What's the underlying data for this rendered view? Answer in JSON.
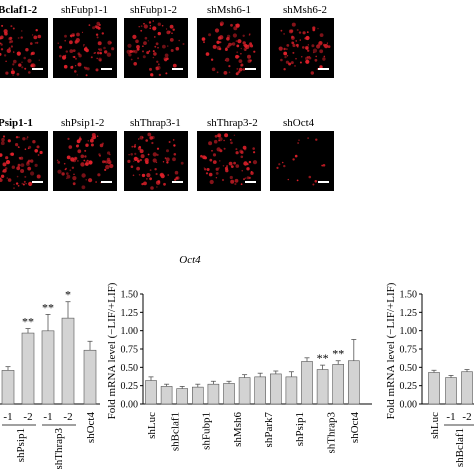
{
  "micrographs": {
    "row1": [
      {
        "label": "Bclaf1-2",
        "prefix": "sh"
      },
      {
        "label": "shFubp1-1"
      },
      {
        "label": "shFubp1-2"
      },
      {
        "label": "shMsh6-1"
      },
      {
        "label": "shMsh6-2"
      }
    ],
    "row2": [
      {
        "label": "Psip1-1",
        "prefix": "sh"
      },
      {
        "label": "shPsip1-2"
      },
      {
        "label": "shThrap3-1"
      },
      {
        "label": "shThrap3-2"
      },
      {
        "label": "shOct4"
      }
    ],
    "spot_color": "#e0202a"
  },
  "chart_data": [
    {
      "type": "bar",
      "id": "left-partial",
      "categories": [
        "-1",
        "-2",
        "-1",
        "-2",
        "shOct4"
      ],
      "group_labels": [
        "shPsip1",
        "shThrap3"
      ],
      "values": [
        0.45,
        0.95,
        0.98,
        1.15,
        0.72
      ],
      "errors": [
        0.05,
        0.06,
        0.22,
        0.22,
        0.12
      ],
      "significance": [
        "",
        "**",
        "**",
        "*",
        ""
      ],
      "ylim": [
        0,
        1.5
      ]
    },
    {
      "type": "bar",
      "id": "oct4",
      "title": "Oct4",
      "ylabel": "Fold mRNA level (−LIF/+LIF)",
      "ylim": [
        0,
        1.5
      ],
      "yticks": [
        "0.00",
        "0.25",
        "0.50",
        "0.75",
        "1.00",
        "1.25",
        "1.50"
      ],
      "bars": [
        {
          "group": "shLuc",
          "label": "",
          "value": 0.32,
          "error": 0.05
        },
        {
          "group": "shBclaf1",
          "label": "-1",
          "value": 0.24,
          "error": 0.03
        },
        {
          "group": "shBclaf1",
          "label": "-2",
          "value": 0.21,
          "error": 0.03
        },
        {
          "group": "shFubp1",
          "label": "-1",
          "value": 0.23,
          "error": 0.04
        },
        {
          "group": "shFubp1",
          "label": "-2",
          "value": 0.27,
          "error": 0.04
        },
        {
          "group": "shMsh6",
          "label": "-1",
          "value": 0.28,
          "error": 0.03
        },
        {
          "group": "shMsh6",
          "label": "-2",
          "value": 0.36,
          "error": 0.04
        },
        {
          "group": "shPark7",
          "label": "-1",
          "value": 0.37,
          "error": 0.05
        },
        {
          "group": "shPark7",
          "label": "-2",
          "value": 0.41,
          "error": 0.04
        },
        {
          "group": "shPsip1",
          "label": "-1",
          "value": 0.37,
          "error": 0.07
        },
        {
          "group": "shPsip1",
          "label": "-2",
          "value": 0.58,
          "error": 0.05
        },
        {
          "group": "shThrap3",
          "label": "-1",
          "value": 0.47,
          "error": 0.06
        },
        {
          "group": "shThrap3",
          "label": "-2",
          "value": 0.54,
          "error": 0.05
        },
        {
          "group": "shOct4",
          "label": "",
          "value": 0.59,
          "error": 0.29
        }
      ],
      "significance": {
        "11": "**",
        "12": "**"
      },
      "group_axis_labels": [
        "shLuc",
        "shBclaf1",
        "shFubp1",
        "shMsh6",
        "shPark7",
        "shPsip1",
        "shThrap3",
        "shOct4"
      ]
    },
    {
      "type": "bar",
      "id": "right-partial",
      "ylabel": "Fold mRNA level (−LIF/+LIF)",
      "ylim": [
        0,
        1.5
      ],
      "yticks": [
        "0.00",
        "0.25",
        "0.50",
        "0.75",
        "1.00",
        "1.25",
        "1.50"
      ],
      "bars": [
        {
          "group": "shLuc",
          "label": "",
          "value": 0.43,
          "error": 0.03
        },
        {
          "group": "shBclaf1",
          "label": "-1",
          "value": 0.36,
          "error": 0.03
        },
        {
          "group": "shBclaf1",
          "label": "-2",
          "value": 0.44,
          "error": 0.03
        }
      ],
      "group_axis_labels": [
        "shLuc",
        "shBclaf1"
      ]
    }
  ]
}
